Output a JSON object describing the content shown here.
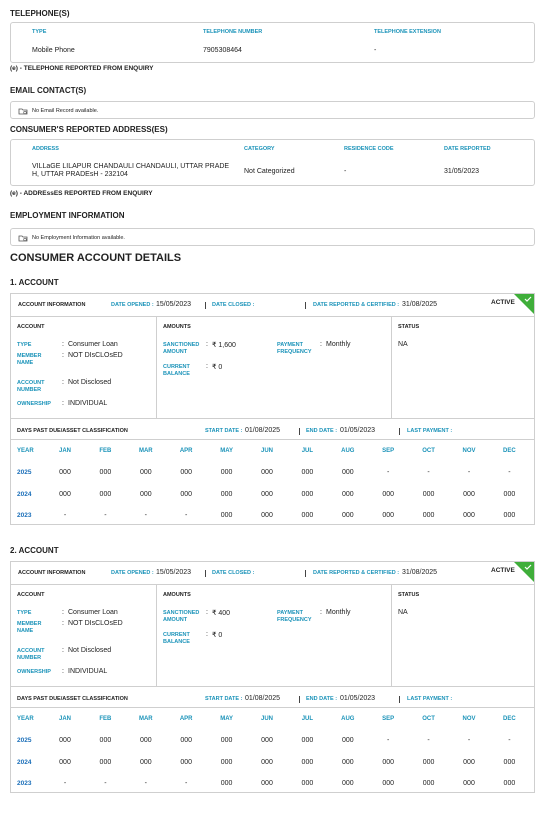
{
  "separator": ":",
  "telephones": {
    "title": "TELEPHONE(S)",
    "headers": [
      "TYPE",
      "TELEPHONE NUMBER",
      "TELEPHONE EXTENSION"
    ],
    "rows": [
      [
        "Mobile Phone",
        "7905308464",
        "-"
      ]
    ],
    "note": "(e) - TELEPHONE REPORTED FROM ENQUIRY"
  },
  "email": {
    "title": "EMAIL CONTACT(S)",
    "empty": "No Email Record available."
  },
  "address": {
    "title": "CONSUMER'S REPORTED ADDRESS(ES)",
    "headers": [
      "ADDRESS",
      "CATEGORY",
      "RESIDENCE CODE",
      "DATE REPORTED"
    ],
    "rows": [
      [
        "VILLaGE LILAPUR CHANDAULI CHANDAULI, UTTAR PRADE H, UTTAR PRADEsH - 232104",
        "Not Categorized",
        "-",
        "31/05/2023"
      ]
    ],
    "note": "(e) - ADDREssES REPORTED FROM ENQUIRY"
  },
  "employment": {
    "title": "EMPLOYMENT INFORMATION",
    "empty": "No Employment Information available."
  },
  "account_details": {
    "title": "CONSUMER ACCOUNT DETAILS",
    "accounts": [
      {
        "heading": "1. ACCOUNT",
        "info_label": "ACCOUNT INFORMATION",
        "date_opened_label": "DATE OPENED :",
        "date_opened": "15/05/2023",
        "date_closed_label": "DATE CLOSED :",
        "date_reported_label": "DATE REPORTED & CERTIFIED :",
        "date_reported": "31/08/2025",
        "status_badge": "ACTIVE",
        "account": {
          "title": "ACCOUNT",
          "fields": [
            {
              "label": "TYPE",
              "value": "Consumer Loan"
            },
            {
              "label": "MEMBER NAME",
              "value": "NOT DIsCLOsED"
            },
            {
              "label": "ACCOUNT NUMBER",
              "value": "Not Disclosed"
            },
            {
              "label": "OWNERSHIP",
              "value": "INDIVIDUAL"
            }
          ]
        },
        "amounts": {
          "title": "AMOUNTS",
          "fields": [
            {
              "label": "SANCTIONED AMOUNT",
              "value": "₹ 1,600"
            },
            {
              "label": "PAYMENT FREQUENCY",
              "value": "Monthly"
            },
            {
              "label": "CURRENT BALANCE",
              "value": "₹ 0"
            }
          ]
        },
        "status": {
          "title": "STATUS",
          "value": "NA"
        },
        "dpd": {
          "title": "DAYS PAST DUE/ASSET CLASSIFICATION",
          "start_date_label": "START DATE :",
          "start_date": "01/08/2025",
          "end_date_label": "END DATE :",
          "end_date": "01/05/2023",
          "last_payment_label": "LAST PAYMENT :",
          "headers": [
            "YEAR",
            "JAN",
            "FEB",
            "MAR",
            "APR",
            "MAY",
            "JUN",
            "JUL",
            "AUG",
            "SEP",
            "OCT",
            "NOV",
            "DEC"
          ],
          "rows": [
            [
              "2025",
              "000",
              "000",
              "000",
              "000",
              "000",
              "000",
              "000",
              "000",
              "-",
              "-",
              "-",
              "-"
            ],
            [
              "2024",
              "000",
              "000",
              "000",
              "000",
              "000",
              "000",
              "000",
              "000",
              "000",
              "000",
              "000",
              "000"
            ],
            [
              "2023",
              "-",
              "-",
              "-",
              "-",
              "000",
              "000",
              "000",
              "000",
              "000",
              "000",
              "000",
              "000"
            ]
          ]
        }
      },
      {
        "heading": "2. ACCOUNT",
        "info_label": "ACCOUNT INFORMATION",
        "date_opened_label": "DATE OPENED :",
        "date_opened": "15/05/2023",
        "date_closed_label": "DATE CLOSED :",
        "date_reported_label": "DATE REPORTED & CERTIFIED :",
        "date_reported": "31/08/2025",
        "status_badge": "ACTIVE",
        "account": {
          "title": "ACCOUNT",
          "fields": [
            {
              "label": "TYPE",
              "value": "Consumer Loan"
            },
            {
              "label": "MEMBER NAME",
              "value": "NOT DIsCLOsED"
            },
            {
              "label": "ACCOUNT NUMBER",
              "value": "Not Disclosed"
            },
            {
              "label": "OWNERSHIP",
              "value": "INDIVIDUAL"
            }
          ]
        },
        "amounts": {
          "title": "AMOUNTS",
          "fields": [
            {
              "label": "SANCTIONED AMOUNT",
              "value": "₹ 400"
            },
            {
              "label": "PAYMENT FREQUENCY",
              "value": "Monthly"
            },
            {
              "label": "CURRENT BALANCE",
              "value": "₹ 0"
            }
          ]
        },
        "status": {
          "title": "STATUS",
          "value": "NA"
        },
        "dpd": {
          "title": "DAYS PAST DUE/ASSET CLASSIFICATION",
          "start_date_label": "START DATE :",
          "start_date": "01/08/2025",
          "end_date_label": "END DATE :",
          "end_date": "01/05/2023",
          "last_payment_label": "LAST PAYMENT :",
          "headers": [
            "YEAR",
            "JAN",
            "FEB",
            "MAR",
            "APR",
            "MAY",
            "JUN",
            "JUL",
            "AUG",
            "SEP",
            "OCT",
            "NOV",
            "DEC"
          ],
          "rows": [
            [
              "2025",
              "000",
              "000",
              "000",
              "000",
              "000",
              "000",
              "000",
              "000",
              "-",
              "-",
              "-",
              "-"
            ],
            [
              "2024",
              "000",
              "000",
              "000",
              "000",
              "000",
              "000",
              "000",
              "000",
              "000",
              "000",
              "000",
              "000"
            ],
            [
              "2023",
              "-",
              "-",
              "-",
              "-",
              "000",
              "000",
              "000",
              "000",
              "000",
              "000",
              "000",
              "000"
            ]
          ]
        }
      }
    ]
  }
}
